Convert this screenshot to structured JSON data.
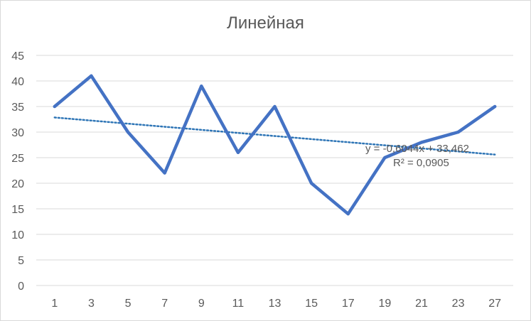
{
  "chart_data": {
    "type": "line",
    "title": "Линейная",
    "categories": [
      "1",
      "3",
      "5",
      "7",
      "9",
      "11",
      "13",
      "15",
      "17",
      "19",
      "21",
      "23",
      "27"
    ],
    "series": [
      {
        "values": [
          35,
          41,
          30,
          22,
          39,
          26,
          35,
          20,
          14,
          25,
          28,
          30,
          35
        ],
        "color": "#4472c4"
      }
    ],
    "trendline": {
      "type": "linear",
      "slope": -0.6044,
      "intercept": 33.462,
      "equation": "y = -0,6044x + 33,462",
      "r_squared": "R² = 0,0905",
      "color": "#2e75b6",
      "style": "dotted"
    },
    "ylim": [
      0,
      45
    ],
    "yticks": [
      "0",
      "5",
      "10",
      "15",
      "20",
      "25",
      "30",
      "35",
      "40",
      "45"
    ],
    "grid": true,
    "legend": "none"
  }
}
